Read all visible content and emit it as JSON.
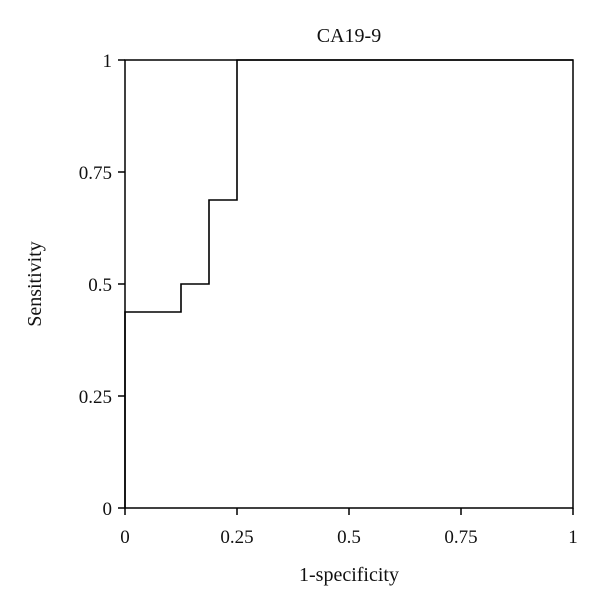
{
  "chart_data": {
    "type": "line",
    "title": "CA19-9",
    "xlabel": "1-specificity",
    "ylabel": "Sensitivity",
    "xlim": [
      0,
      1
    ],
    "ylim": [
      0,
      1
    ],
    "x_ticks": [
      0,
      0.25,
      0.5,
      0.75,
      1
    ],
    "x_tick_labels": [
      "0",
      "0.25",
      "0.5",
      "0.75",
      "1"
    ],
    "y_ticks": [
      0,
      0.25,
      0.5,
      0.75,
      1
    ],
    "y_tick_labels": [
      "0",
      "0.25",
      "0.5",
      "0.75",
      "1"
    ],
    "grid": false,
    "series": [
      {
        "style": "step",
        "color": "#000000",
        "x": [
          0,
          0,
          0.125,
          0.125,
          0.1875,
          0.1875,
          0.25,
          0.25,
          1
        ],
        "y": [
          0,
          0.4375,
          0.4375,
          0.5,
          0.5,
          0.6875,
          0.6875,
          1,
          1
        ]
      }
    ]
  }
}
